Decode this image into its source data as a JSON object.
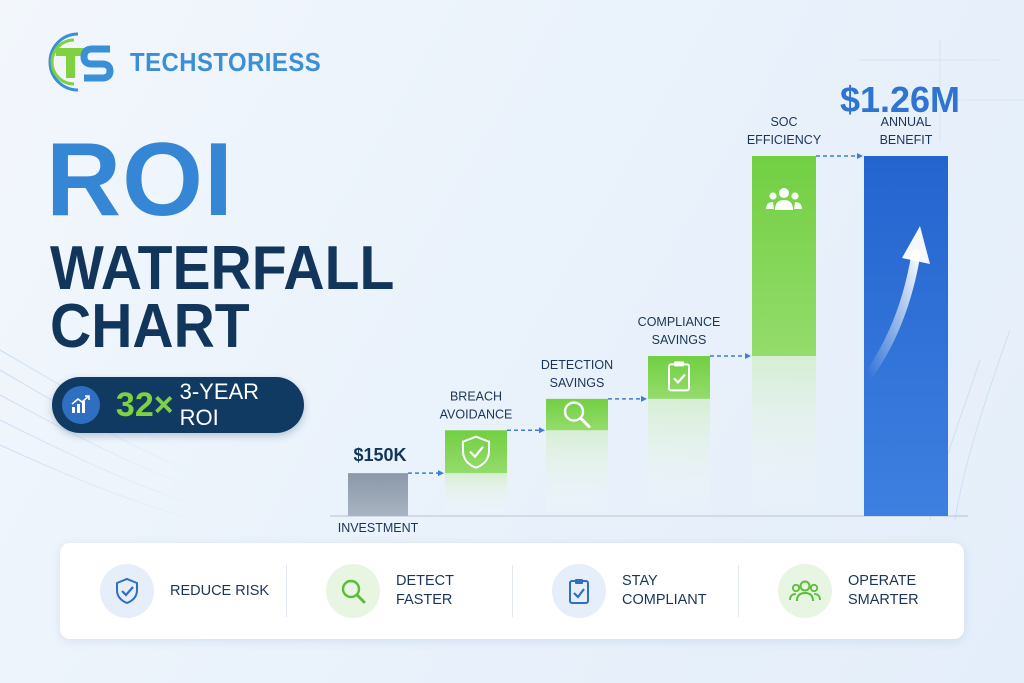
{
  "brand": {
    "name": "TECHSTORIESS",
    "mark": "TS",
    "colors": {
      "blue": "#3b8fd6",
      "green": "#7fd13f"
    }
  },
  "headline": {
    "line1": "ROI",
    "line2": "WATERFALL",
    "line3": "CHART"
  },
  "roi_badge": {
    "multiplier": "32×",
    "text": "3-YEAR ROI",
    "icon": "growth-chart-icon"
  },
  "chart_data": {
    "type": "bar",
    "subtype": "waterfall",
    "categories": [
      "INVESTMENT",
      "BREACH AVOIDANCE",
      "DETECTION SAVINGS",
      "COMPLIANCE SAVINGS",
      "SOC EFFICIENCY",
      "ANNUAL BENEFIT"
    ],
    "category_lines": [
      [
        "INVESTMENT"
      ],
      [
        "BREACH",
        "AVOIDANCE"
      ],
      [
        "DETECTION",
        "SAVINGS"
      ],
      [
        "COMPLIANCE",
        "SAVINGS"
      ],
      [
        "SOC",
        "EFFICIENCY"
      ],
      [
        "ANNUAL",
        "BENEFIT"
      ]
    ],
    "values": [
      0.15,
      0.15,
      0.11,
      0.15,
      0.7,
      1.26
    ],
    "bar_bottoms": [
      0.0,
      0.15,
      0.3,
      0.41,
      0.56,
      0.0
    ],
    "bar_tops": [
      0.15,
      0.3,
      0.41,
      0.56,
      1.26,
      1.26
    ],
    "ylim": [
      0,
      1.4
    ],
    "units": "$M",
    "value_labels": [
      {
        "category": "INVESTMENT",
        "text": "$150K"
      },
      {
        "category": "ANNUAL BENEFIT",
        "text": "$1.26M"
      }
    ],
    "bar_colors": [
      "#8d9bab",
      "#6fcc40",
      "#6fcc40",
      "#6fcc40",
      "#6fcc40",
      "#2f6fd4"
    ],
    "bar_icons": [
      "",
      "shield-check-icon",
      "magnifier-icon",
      "clipboard-check-icon",
      "team-icon",
      "up-arrow-icon"
    ],
    "grid": false,
    "legend": "none"
  },
  "features": [
    {
      "label": "REDUCE RISK",
      "icon": "shield-check-icon",
      "color": "#2f6fc2",
      "bg": "#e6eefa"
    },
    {
      "label": "DETECT FASTER",
      "icon": "magnifier-icon",
      "color": "#5bbd3a",
      "bg": "#e8f5e2"
    },
    {
      "label": "STAY COMPLIANT",
      "icon": "clipboard-check-icon",
      "color": "#2f6fc2",
      "bg": "#e6eefa"
    },
    {
      "label": "OPERATE SMARTER",
      "icon": "team-icon",
      "color": "#5bbd3a",
      "bg": "#e8f5e2"
    }
  ]
}
